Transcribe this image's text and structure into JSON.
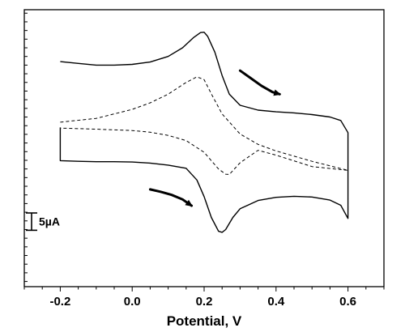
{
  "chart_data": {
    "type": "line",
    "xlabel": "Potential, V",
    "ylabel": "",
    "xlim": [
      -0.3,
      0.7
    ],
    "ylim": [
      -24,
      56
    ],
    "x_ticks": [
      -0.2,
      0.0,
      0.2,
      0.4,
      0.6
    ],
    "x_tick_labels": [
      "-0.2",
      "0.0",
      "0.2",
      "0.4",
      "0.6"
    ],
    "scale_bar": {
      "label": "5µA",
      "value": 5
    },
    "series": [
      {
        "style": "solid",
        "x": [
          -0.2,
          -0.15,
          -0.1,
          -0.05,
          0.0,
          0.05,
          0.1,
          0.14,
          0.17,
          0.19,
          0.2,
          0.21,
          0.23,
          0.25,
          0.27,
          0.3,
          0.35,
          0.4,
          0.45,
          0.5,
          0.55,
          0.58,
          0.6,
          0.6,
          0.6,
          0.58,
          0.55,
          0.5,
          0.45,
          0.4,
          0.35,
          0.3,
          0.28,
          0.26,
          0.25,
          0.24,
          0.22,
          0.2,
          0.18,
          0.15,
          0.1,
          0.05,
          0.0,
          -0.05,
          -0.1,
          -0.15,
          -0.2,
          -0.2
        ],
        "y": [
          41.0,
          40.5,
          40.0,
          40.0,
          40.2,
          40.9,
          42.5,
          45.0,
          47.9,
          49.4,
          49.5,
          48.3,
          43.7,
          37.0,
          31.6,
          28.4,
          27.0,
          26.5,
          26.2,
          25.7,
          25.0,
          24.0,
          20.5,
          2.0,
          -4.3,
          -0.5,
          1.0,
          1.9,
          2.1,
          1.8,
          0.9,
          -1.5,
          -4.0,
          -7.5,
          -8.3,
          -8.0,
          -4.0,
          2.0,
          6.8,
          10.2,
          11.1,
          11.7,
          12.0,
          12.1,
          12.1,
          12.2,
          12.4,
          22.0
        ]
      },
      {
        "style": "dashed",
        "x": [
          -0.2,
          -0.1,
          0.0,
          0.05,
          0.1,
          0.15,
          0.18,
          0.2,
          0.22,
          0.25,
          0.3,
          0.35,
          0.4,
          0.5,
          0.6,
          0.5,
          0.4,
          0.35,
          0.3,
          0.27,
          0.26,
          0.24,
          0.2,
          0.15,
          0.1,
          0.05,
          0.0,
          -0.1,
          -0.2
        ],
        "y": [
          23.5,
          24.6,
          27.2,
          29.1,
          31.6,
          35.0,
          36.6,
          35.8,
          31.7,
          25.9,
          20.1,
          17.1,
          15.2,
          12.2,
          9.6,
          10.7,
          14.0,
          15.4,
          11.8,
          8.4,
          8.5,
          10.0,
          14.8,
          18.2,
          19.7,
          20.6,
          21.1,
          21.5,
          21.8
        ]
      }
    ],
    "arrows": [
      {
        "x": [
          0.3,
          0.33,
          0.36,
          0.39,
          0.41
        ],
        "y": [
          38.4,
          36.2,
          34.0,
          32.2,
          31.6
        ]
      },
      {
        "x": [
          0.05,
          0.08,
          0.11,
          0.14,
          0.165
        ],
        "y": [
          4.1,
          3.4,
          2.5,
          1.2,
          -0.6
        ]
      }
    ]
  }
}
